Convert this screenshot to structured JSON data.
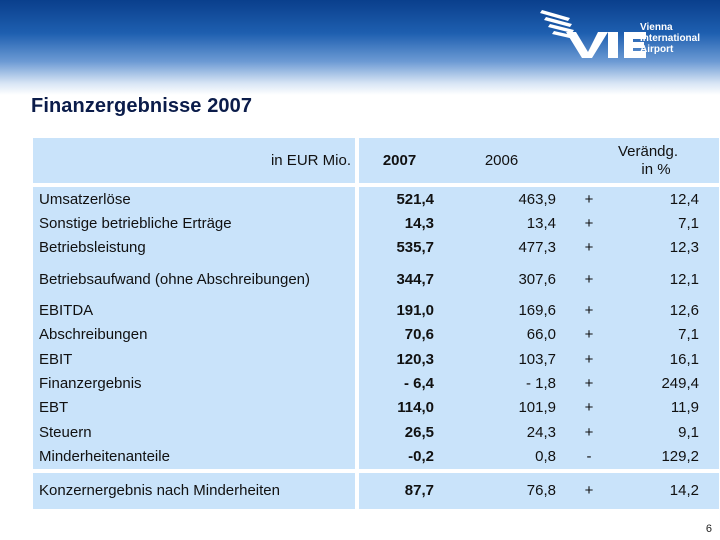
{
  "title": "Finanzergebnisse 2007",
  "logo": {
    "line1": "Vienna",
    "line2": "International",
    "line3": "Airport",
    "mark": "VIE"
  },
  "table": {
    "header": {
      "unit": "in EUR Mio.",
      "col2007": "2007",
      "col2006": "2006",
      "change_line1": "Verändg.",
      "change_line2": "in %"
    },
    "rows": [
      {
        "label": "Umsatzerlöse",
        "v2007": "521,4",
        "v2006": "463,9",
        "sign": "+",
        "change": "12,4"
      },
      {
        "label": "Sonstige betriebliche Erträge",
        "v2007": "14,3",
        "v2006": "13,4",
        "sign": "+",
        "change": "7,1"
      },
      {
        "label": "Betriebsleistung",
        "v2007": "535,7",
        "v2006": "477,3",
        "sign": "+",
        "change": "12,3"
      },
      {
        "label": "Betriebsaufwand (ohne Abschreibungen)",
        "v2007": "344,7",
        "v2006": "307,6",
        "sign": "+",
        "change": "12,1"
      },
      {
        "label": "EBITDA",
        "v2007": "191,0",
        "v2006": "169,6",
        "sign": "+",
        "change": "12,6"
      },
      {
        "label": "Abschreibungen",
        "v2007": "70,6",
        "v2006": "66,0",
        "sign": "+",
        "change": "7,1"
      },
      {
        "label": "EBIT",
        "v2007": "120,3",
        "v2006": "103,7",
        "sign": "+",
        "change": "16,1"
      },
      {
        "label": "Finanzergebnis",
        "v2007": "- 6,4",
        "v2006": "- 1,8",
        "sign": "+",
        "change": "249,4"
      },
      {
        "label": "EBT",
        "v2007": "114,0",
        "v2006": "101,9",
        "sign": "+",
        "change": "11,9"
      },
      {
        "label": "Steuern",
        "v2007": "26,5",
        "v2006": "24,3",
        "sign": "+",
        "change": "9,1"
      },
      {
        "label": "Minderheitenanteile",
        "v2007": "-0,2",
        "v2006": "0,8",
        "sign": "-",
        "change": "129,2"
      }
    ],
    "total": {
      "label": "Konzernergebnis nach Minderheiten",
      "v2007": "87,7",
      "v2006": "76,8",
      "sign": "+",
      "change": "14,2"
    }
  },
  "page_number": "6",
  "colors": {
    "header_dark": "#0a3f8c",
    "table_fill": "#c9e3fa",
    "title": "#0b1c4a"
  }
}
